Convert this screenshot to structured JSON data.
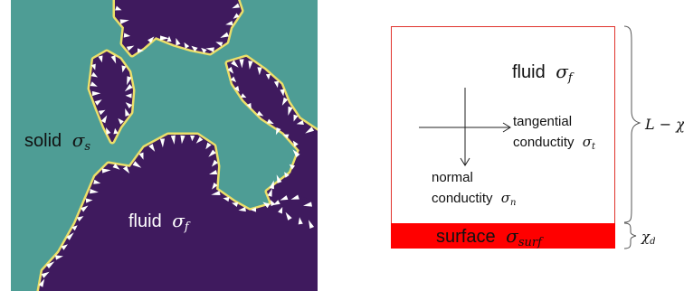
{
  "left_panel": {
    "solid_text": "solid",
    "solid_symbol": "σ",
    "solid_subscript": "s",
    "fluid_text": "fluid",
    "fluid_symbol": "σ",
    "fluid_subscript": "f",
    "colors": {
      "solid": "#4e9d95",
      "fluid": "#3f1a5e",
      "interface": "#ecdf69",
      "arrows": "#ffffff"
    }
  },
  "right_panel": {
    "fluid_text": "fluid",
    "fluid_symbol": "σ",
    "fluid_subscript": "f",
    "tangential_line1": "tangential",
    "tangential_line2": "conductity",
    "tangential_symbol": "σ",
    "tangential_subscript": "t",
    "normal_line1": "normal",
    "normal_line2": "conductity",
    "normal_symbol": "σ",
    "normal_subscript": "n",
    "surface_text": "surface",
    "surface_symbol": "σ",
    "surface_subscript": "surf",
    "brace_top_label": "L − χ",
    "brace_top_subscript": "d",
    "brace_bottom_label": "χ",
    "brace_bottom_subscript": "d",
    "colors": {
      "box_outline": "#e0322b",
      "surface_fill": "#ff0000",
      "text": "#111111"
    }
  }
}
